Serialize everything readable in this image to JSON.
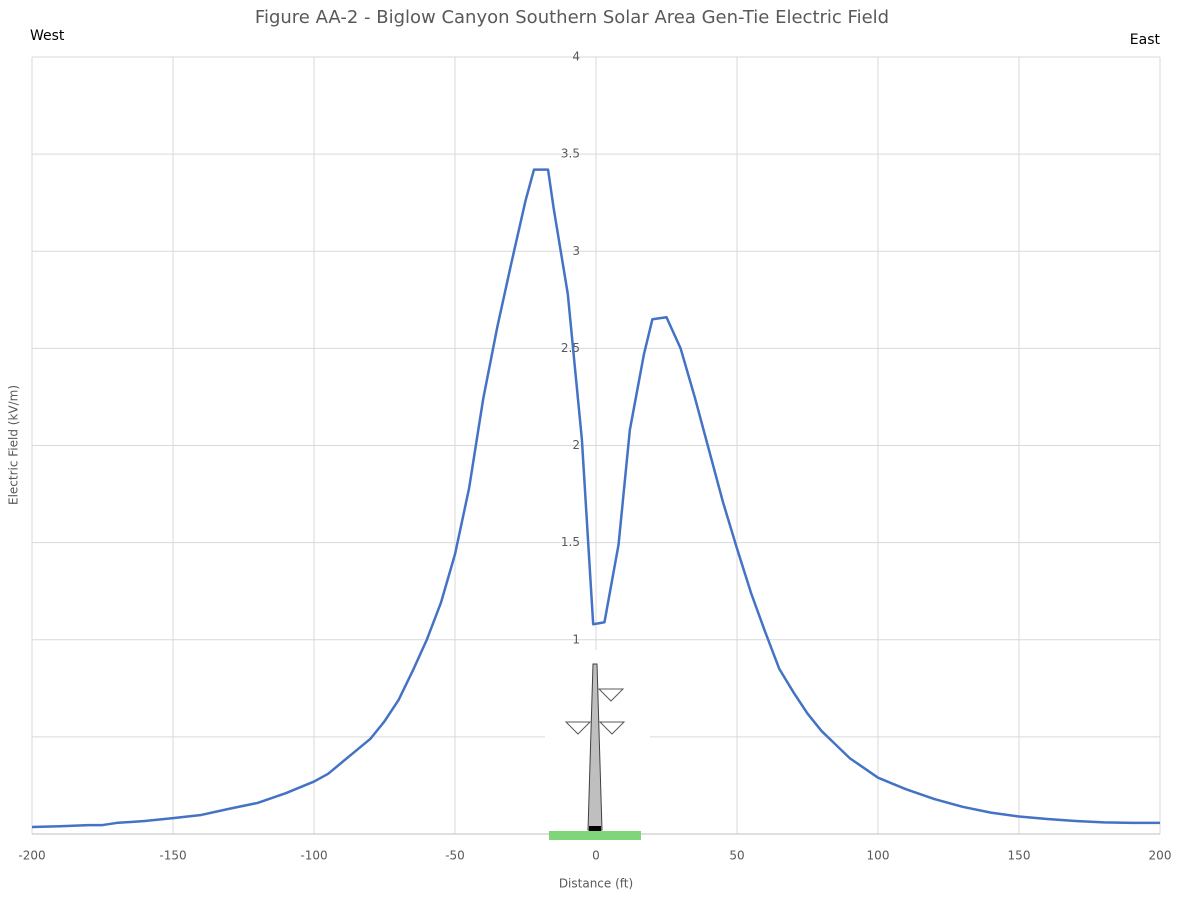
{
  "chart_data": {
    "type": "line",
    "title": "Figure AA-2 - Biglow Canyon Southern Solar Area Gen-Tie Electric Field",
    "annotations": [
      "West",
      "East"
    ],
    "x_label": "Distance (ft)",
    "y_label": "Electric Field (kV/m)",
    "x": [
      -200,
      -190,
      -180,
      -175,
      -170,
      -160,
      -150,
      -140,
      -130,
      -120,
      -110,
      -100,
      -95,
      -90,
      -85,
      -80,
      -75,
      -70,
      -65,
      -60,
      -55,
      -50,
      -45,
      -40,
      -35,
      -30,
      -25,
      -22,
      -17,
      -15,
      -10,
      -5,
      -1,
      3,
      8,
      12,
      17,
      20,
      25,
      30,
      35,
      40,
      45,
      50,
      55,
      60,
      65,
      70,
      75,
      80,
      85,
      90,
      95,
      100,
      110,
      120,
      130,
      140,
      150,
      160,
      170,
      180,
      190,
      200
    ],
    "series": [
      {
        "name": "Electric Field",
        "color": "#4472c4",
        "values": [
          0.036,
          0.04,
          0.046,
          0.046,
          0.057,
          0.067,
          0.082,
          0.098,
          0.13,
          0.16,
          0.21,
          0.27,
          0.31,
          0.37,
          0.43,
          0.49,
          0.58,
          0.69,
          0.84,
          1.0,
          1.19,
          1.44,
          1.78,
          2.24,
          2.61,
          2.94,
          3.26,
          3.42,
          3.42,
          3.22,
          2.78,
          2.03,
          1.08,
          1.09,
          1.49,
          2.08,
          2.47,
          2.65,
          2.66,
          2.5,
          2.25,
          1.98,
          1.71,
          1.47,
          1.24,
          1.04,
          0.85,
          0.73,
          0.62,
          0.53,
          0.46,
          0.39,
          0.34,
          0.29,
          0.23,
          0.18,
          0.14,
          0.11,
          0.09,
          0.077,
          0.067,
          0.06,
          0.057,
          0.057
        ]
      }
    ],
    "xlim": [
      -200,
      200
    ],
    "xticks": [
      -200,
      -150,
      -100,
      -50,
      0,
      50,
      100,
      150,
      200
    ],
    "ylim": [
      0,
      4
    ],
    "yticks": [
      0,
      0.5,
      1,
      1.5,
      2,
      2.5,
      3,
      3.5,
      4
    ],
    "grid": true
  }
}
